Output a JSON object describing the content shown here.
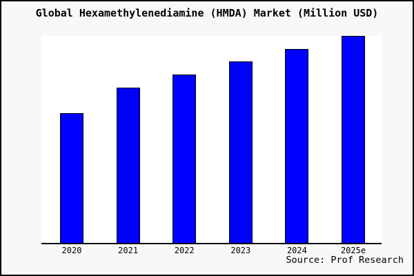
{
  "figure": {
    "title": "Global Hexamethylenediamine (HMDA) Market (Million USD)",
    "source_note": "Source: Prof Research"
  },
  "colors": {
    "bar_fill": "#0000ff",
    "bar_edge": "#000000",
    "plot_background": "#ffffff",
    "figure_background": "#f8f8f8",
    "axis_line": "#000000",
    "frame_border": "#000000",
    "text": "#000000"
  },
  "chart_data": {
    "type": "bar",
    "title": "Global Hexamethylenediamine (HMDA) Market (Million USD)",
    "categories": [
      "2020",
      "2021",
      "2022",
      "2023",
      "2024",
      "2025e"
    ],
    "values": [
      62.8,
      75.1,
      81.4,
      87.7,
      93.7,
      100
    ],
    "values_note": "No y-axis ticks, gridlines or value labels are shown; values are relative bar heights estimated from the plot with 2025e = 100",
    "xlabel": "",
    "ylabel": "",
    "ylim": [
      0,
      100
    ],
    "y_axis_visible": false,
    "gridlines": false,
    "legend": false,
    "source": "Source: Prof Research"
  }
}
